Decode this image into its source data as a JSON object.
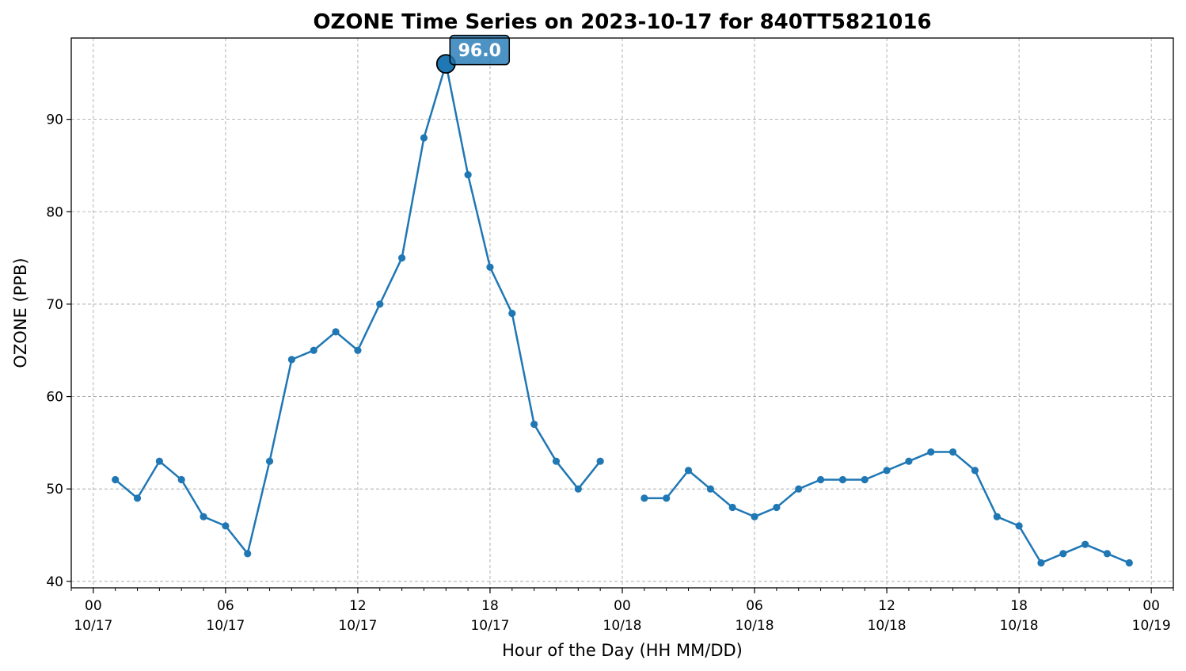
{
  "chart_data": {
    "type": "line",
    "title": "OZONE Time Series on 2023-10-17 for 840TT5821016",
    "xlabel": "Hour of the Day (HH MM/DD)",
    "ylabel": "OZONE (PPB)",
    "ylim": [
      39.3,
      98.8
    ],
    "xlim": [
      "2023-10-17T00:00 minus 1h",
      "2023-10-19T00:00 plus 1h"
    ],
    "y_ticks": [
      40,
      50,
      60,
      70,
      80,
      90
    ],
    "x_ticks": [
      {
        "hour": "00",
        "date": "10/17"
      },
      {
        "hour": "06",
        "date": "10/17"
      },
      {
        "hour": "12",
        "date": "10/17"
      },
      {
        "hour": "18",
        "date": "10/17"
      },
      {
        "hour": "00",
        "date": "10/18"
      },
      {
        "hour": "06",
        "date": "10/18"
      },
      {
        "hour": "12",
        "date": "10/18"
      },
      {
        "hour": "18",
        "date": "10/18"
      },
      {
        "hour": "00",
        "date": "10/19"
      }
    ],
    "grid": true,
    "color": "#1f77b4",
    "peak": {
      "time": "2023-10-17T16:00",
      "value": 96.0,
      "label": "96.0"
    },
    "series": [
      {
        "segments": [
          [
            [
              "2023-10-17T01:00",
              51
            ],
            [
              "2023-10-17T02:00",
              49
            ],
            [
              "2023-10-17T03:00",
              53
            ],
            [
              "2023-10-17T04:00",
              51
            ],
            [
              "2023-10-17T05:00",
              47
            ],
            [
              "2023-10-17T06:00",
              46
            ],
            [
              "2023-10-17T07:00",
              43
            ],
            [
              "2023-10-17T08:00",
              53
            ],
            [
              "2023-10-17T09:00",
              64
            ],
            [
              "2023-10-17T10:00",
              65
            ],
            [
              "2023-10-17T11:00",
              67
            ],
            [
              "2023-10-17T12:00",
              65
            ],
            [
              "2023-10-17T13:00",
              70
            ],
            [
              "2023-10-17T14:00",
              75
            ],
            [
              "2023-10-17T15:00",
              88
            ],
            [
              "2023-10-17T16:00",
              96
            ],
            [
              "2023-10-17T17:00",
              84
            ],
            [
              "2023-10-17T18:00",
              74
            ],
            [
              "2023-10-17T19:00",
              69
            ],
            [
              "2023-10-17T20:00",
              57
            ],
            [
              "2023-10-17T21:00",
              53
            ],
            [
              "2023-10-17T22:00",
              50
            ],
            [
              "2023-10-17T23:00",
              53
            ]
          ],
          [
            [
              "2023-10-18T01:00",
              49
            ],
            [
              "2023-10-18T02:00",
              49
            ],
            [
              "2023-10-18T03:00",
              52
            ],
            [
              "2023-10-18T04:00",
              50
            ],
            [
              "2023-10-18T05:00",
              48
            ],
            [
              "2023-10-18T06:00",
              47
            ],
            [
              "2023-10-18T07:00",
              48
            ],
            [
              "2023-10-18T08:00",
              50
            ],
            [
              "2023-10-18T09:00",
              51
            ],
            [
              "2023-10-18T10:00",
              51
            ],
            [
              "2023-10-18T11:00",
              51
            ],
            [
              "2023-10-18T12:00",
              52
            ],
            [
              "2023-10-18T13:00",
              53
            ],
            [
              "2023-10-18T14:00",
              54
            ],
            [
              "2023-10-18T15:00",
              54
            ],
            [
              "2023-10-18T16:00",
              52
            ],
            [
              "2023-10-18T17:00",
              47
            ],
            [
              "2023-10-18T18:00",
              46
            ],
            [
              "2023-10-18T19:00",
              42
            ],
            [
              "2023-10-18T20:00",
              43
            ],
            [
              "2023-10-18T21:00",
              44
            ],
            [
              "2023-10-18T22:00",
              43
            ],
            [
              "2023-10-18T23:00",
              42
            ]
          ]
        ]
      }
    ]
  }
}
